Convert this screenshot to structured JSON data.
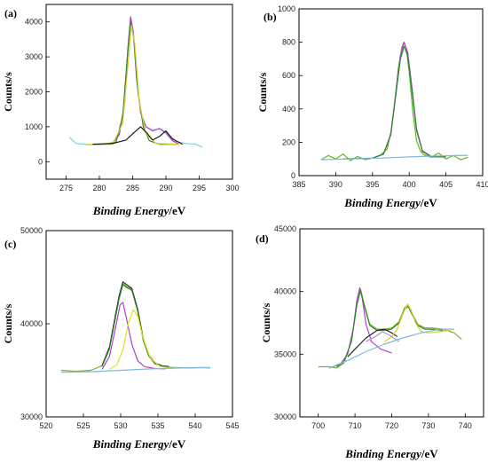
{
  "chart_data": [
    {
      "type": "line",
      "panel_label": "(a)",
      "xlabel_main": "Binding Energy",
      "xlabel_unit": "/eV",
      "ylabel": "Counts/s",
      "xlim": [
        272,
        300
      ],
      "ylim": [
        -500,
        4500
      ],
      "xticks": [
        275,
        280,
        285,
        290,
        295,
        300
      ],
      "yticks": [
        0,
        1000,
        2000,
        3000,
        4000
      ],
      "series": [
        {
          "color": "#7fd3e0",
          "x": [
            275.5,
            276.5,
            278,
            280,
            282,
            283,
            283.8,
            284.3,
            284.7,
            285.1,
            285.6,
            286.2,
            287,
            288,
            289,
            290,
            291.5,
            293,
            294.5,
            295.5
          ],
          "y": [
            700,
            520,
            500,
            500,
            540,
            800,
            1700,
            3300,
            4100,
            3700,
            2400,
            1400,
            1000,
            900,
            950,
            850,
            580,
            520,
            500,
            420
          ]
        },
        {
          "color": "#b040d0",
          "x": [
            278,
            280,
            282,
            283,
            283.8,
            284.3,
            284.7,
            285.1,
            285.6,
            286.2,
            287,
            288,
            289,
            290,
            291,
            292
          ],
          "y": [
            500,
            500,
            520,
            780,
            1700,
            3300,
            4150,
            3700,
            2350,
            1400,
            1000,
            880,
            950,
            820,
            600,
            500
          ]
        },
        {
          "color": "#2e8b2e",
          "x": [
            278,
            281,
            282.5,
            283.5,
            284.2,
            284.7,
            285.2,
            285.8,
            286.6,
            287.5,
            289,
            292
          ],
          "y": [
            500,
            500,
            560,
            1300,
            3000,
            4000,
            3500,
            2000,
            1000,
            600,
            500,
            500
          ]
        },
        {
          "color": "#d6d028",
          "x": [
            278,
            282,
            283.5,
            284.3,
            284.8,
            285.3,
            286,
            287,
            288.5,
            292
          ],
          "y": [
            500,
            500,
            1100,
            2800,
            3900,
            3400,
            1700,
            800,
            520,
            500
          ]
        },
        {
          "color": "#1a1a1a",
          "x": [
            279,
            282,
            284,
            285.3,
            286.2,
            287,
            288,
            289,
            290,
            291,
            292.5
          ],
          "y": [
            500,
            520,
            620,
            850,
            1000,
            850,
            620,
            720,
            880,
            650,
            500
          ]
        }
      ]
    },
    {
      "type": "line",
      "panel_label": "(b)",
      "xlabel_main": "Binding Energy",
      "xlabel_unit": "/eV",
      "ylabel": "Counts/s",
      "xlim": [
        385,
        410
      ],
      "ylim": [
        0,
        1000
      ],
      "xticks": [
        385,
        390,
        395,
        400,
        405,
        410
      ],
      "yticks": [
        0,
        200,
        400,
        600,
        800,
        1000
      ],
      "series": [
        {
          "color": "#5fb82a",
          "x": [
            388,
            389,
            390,
            391,
            392,
            393,
            394,
            395,
            396,
            397,
            397.5,
            398,
            398.5,
            399,
            399.3,
            399.6,
            400,
            400.5,
            401,
            401.5,
            402,
            403,
            404,
            405,
            406,
            407,
            408
          ],
          "y": [
            95,
            120,
            100,
            130,
            90,
            115,
            95,
            105,
            120,
            160,
            260,
            430,
            640,
            770,
            800,
            760,
            620,
            380,
            210,
            150,
            125,
            110,
            135,
            100,
            120,
            95,
            110
          ]
        },
        {
          "color": "#b040d0",
          "x": [
            391,
            395,
            396.5,
            397.5,
            398.2,
            398.8,
            399.3,
            399.8,
            400.4,
            401,
            401.8,
            403,
            405
          ],
          "y": [
            100,
            105,
            130,
            250,
            500,
            720,
            800,
            740,
            520,
            280,
            150,
            115,
            115
          ]
        },
        {
          "color": "#2e8b2e",
          "x": [
            391,
            395,
            396.5,
            397.5,
            398.2,
            398.8,
            399.3,
            399.8,
            400.4,
            401,
            401.8,
            403,
            405
          ],
          "y": [
            100,
            105,
            128,
            245,
            490,
            700,
            775,
            720,
            500,
            270,
            145,
            112,
            112
          ]
        },
        {
          "color": "#7fb8e0",
          "x": [
            388,
            392,
            396,
            400,
            404,
            408
          ],
          "y": [
            95,
            100,
            105,
            112,
            118,
            122
          ]
        }
      ]
    },
    {
      "type": "line",
      "panel_label": "(c)",
      "xlabel_main": "Binding Energy",
      "xlabel_unit": "/eV",
      "ylabel": "Counts/s",
      "xlim": [
        520,
        545
      ],
      "ylim": [
        30000,
        50000
      ],
      "xticks": [
        520,
        525,
        530,
        535,
        540,
        545
      ],
      "yticks": [
        30000,
        40000,
        50000
      ],
      "series": [
        {
          "color": "#7fb030",
          "x": [
            522,
            524,
            526,
            527.5,
            528.5,
            529.2,
            529.8,
            530.3,
            530.8,
            531.5,
            532.3,
            533,
            533.8,
            534.6,
            535.5,
            537,
            539,
            541,
            542
          ],
          "y": [
            35000,
            34900,
            35000,
            35500,
            37500,
            40500,
            43000,
            44300,
            44000,
            43700,
            41500,
            38500,
            36600,
            35800,
            35400,
            35300,
            35250,
            35300,
            35250
          ]
        },
        {
          "color": "#2a2a2a",
          "x": [
            527.5,
            528.5,
            529.2,
            529.8,
            530.3,
            530.8,
            531.5,
            532.3,
            533,
            533.8,
            534.6,
            535.5,
            536.5
          ],
          "y": [
            35500,
            37500,
            40500,
            43000,
            44500,
            44200,
            43800,
            41500,
            38500,
            36600,
            35800,
            35500,
            35400
          ]
        },
        {
          "color": "#2e8b2e",
          "x": [
            527.5,
            528.5,
            529.2,
            529.8,
            530.3,
            530.8,
            531.5,
            532.3,
            533,
            533.8,
            534.6,
            535.5,
            536.5
          ],
          "y": [
            35400,
            37300,
            40200,
            42700,
            44200,
            43900,
            43600,
            41300,
            38300,
            36500,
            35700,
            35450,
            35350
          ]
        },
        {
          "color": "#b040d0",
          "x": [
            527.5,
            528.5,
            529.3,
            529.9,
            530.3,
            530.8,
            531.5,
            532.3,
            533.2,
            534.5,
            536
          ],
          "y": [
            35100,
            36500,
            39500,
            42000,
            42300,
            40500,
            37800,
            36000,
            35400,
            35200,
            35150
          ]
        },
        {
          "color": "#e0e020",
          "x": [
            528.5,
            529.5,
            530.3,
            531,
            531.7,
            532.3,
            533,
            534,
            535.3,
            537
          ],
          "y": [
            35100,
            35600,
            37200,
            40000,
            41500,
            40800,
            38500,
            36300,
            35400,
            35200
          ]
        },
        {
          "color": "#7fb8e0",
          "x": [
            522,
            526,
            530,
            534,
            538,
            542
          ],
          "y": [
            34800,
            34850,
            35000,
            35150,
            35250,
            35300
          ]
        }
      ]
    },
    {
      "type": "line",
      "panel_label": "(d)",
      "xlabel_main": "Binding Energy",
      "xlabel_unit": "/eV",
      "ylabel": "Counts/s",
      "xlim": [
        695,
        745
      ],
      "ylim": [
        30000,
        45000
      ],
      "xticks": [
        700,
        710,
        720,
        730,
        740
      ],
      "yticks": [
        30000,
        35000,
        40000,
        45000
      ],
      "series": [
        {
          "color": "#7fb030",
          "x": [
            700,
            703,
            705,
            707,
            709,
            710.5,
            711.5,
            712.5,
            714,
            716,
            718,
            720,
            722,
            723.5,
            724.5,
            725.5,
            727,
            729,
            731,
            734,
            737,
            739
          ],
          "y": [
            34000,
            34000,
            33900,
            34300,
            36000,
            39000,
            40200,
            39000,
            37400,
            37000,
            37000,
            37100,
            37600,
            38700,
            38900,
            38300,
            37400,
            37100,
            37100,
            37000,
            36700,
            36200
          ]
        },
        {
          "color": "#b040d0",
          "x": [
            703,
            706,
            708,
            709.5,
            710.5,
            711.3,
            712,
            713,
            714.5,
            717,
            720
          ],
          "y": [
            33900,
            34200,
            35000,
            37000,
            39300,
            40300,
            39400,
            37400,
            36000,
            35400,
            35100
          ]
        },
        {
          "color": "#2e8b2e",
          "x": [
            705,
            707,
            709,
            710.5,
            711.5,
            712.5,
            714,
            716,
            718,
            720,
            722,
            723.5,
            724.5,
            725.5,
            727,
            729,
            731,
            734
          ],
          "y": [
            34000,
            34400,
            36000,
            38900,
            40100,
            38900,
            37300,
            36900,
            36900,
            37000,
            37500,
            38600,
            38800,
            38200,
            37300,
            37000,
            37000,
            36900
          ]
        },
        {
          "color": "#2a2a2a",
          "x": [
            708,
            710,
            713,
            716,
            718,
            720,
            721.5
          ],
          "y": [
            34800,
            35400,
            36300,
            36900,
            37000,
            36700,
            36400
          ]
        },
        {
          "color": "#d6d028",
          "x": [
            718,
            720,
            721.5,
            723,
            724.3,
            725.3,
            726.5,
            728,
            730,
            733,
            736
          ],
          "y": [
            36000,
            36400,
            37000,
            38200,
            39000,
            38500,
            37500,
            36800,
            36700,
            36800,
            36900
          ]
        },
        {
          "color": "#b090d8",
          "x": [
            713,
            715.5,
            717.5,
            719.5,
            722
          ],
          "y": [
            36000,
            36400,
            36800,
            36500,
            36000
          ]
        },
        {
          "color": "#7fb8e0",
          "x": [
            703,
            708,
            713,
            718,
            723,
            728,
            733,
            737
          ],
          "y": [
            33900,
            34500,
            35200,
            35800,
            36300,
            36700,
            37000,
            37000
          ]
        }
      ]
    }
  ]
}
